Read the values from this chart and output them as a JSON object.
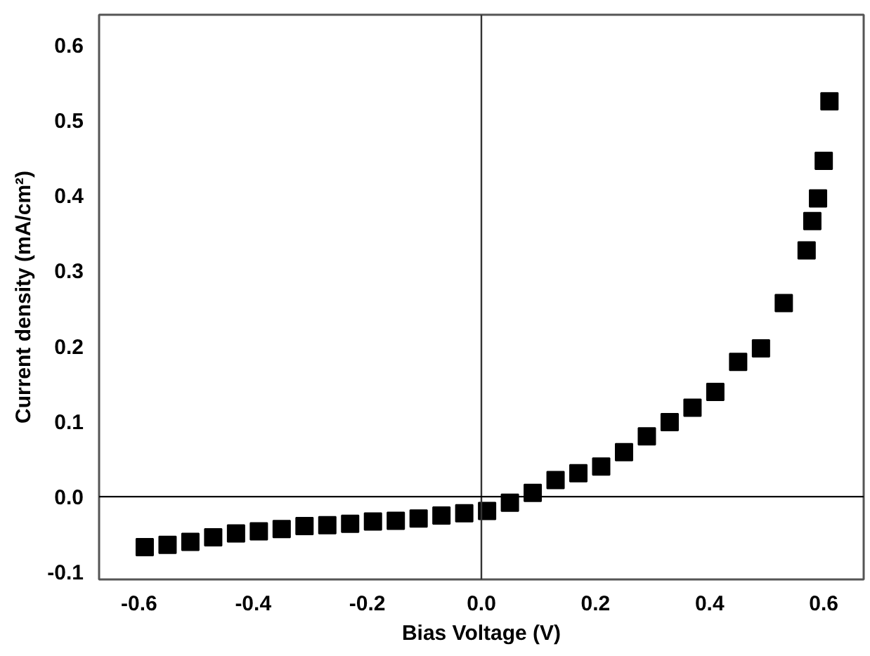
{
  "chart_data": {
    "type": "scatter",
    "xlabel": "Bias Voltage (V)",
    "ylabel": "Current density (mA/cm²)",
    "x": [
      -0.59,
      -0.55,
      -0.51,
      -0.47,
      -0.43,
      -0.39,
      -0.35,
      -0.31,
      -0.27,
      -0.23,
      -0.19,
      -0.15,
      -0.11,
      -0.07,
      -0.03,
      0.01,
      0.05,
      0.09,
      0.13,
      0.17,
      0.21,
      0.25,
      0.29,
      0.33,
      0.37,
      0.41,
      0.45,
      0.49,
      0.53,
      0.57,
      0.58,
      0.59,
      0.6,
      0.61
    ],
    "series": [
      {
        "color": "#000000",
        "values": [
          -0.067,
          -0.064,
          -0.06,
          -0.054,
          -0.049,
          -0.046,
          -0.043,
          -0.039,
          -0.038,
          -0.036,
          -0.033,
          -0.032,
          -0.029,
          -0.025,
          -0.022,
          -0.019,
          -0.008,
          0.005,
          0.022,
          0.031,
          0.04,
          0.059,
          0.08,
          0.099,
          0.118,
          0.139,
          0.179,
          0.197,
          0.257,
          0.327,
          0.366,
          0.396,
          0.446,
          0.525
        ]
      }
    ],
    "marker": "square",
    "grid": false,
    "xlim": [
      -0.67,
      0.67
    ],
    "ylim": [
      -0.11,
      0.64
    ],
    "xticks": [
      -0.6,
      -0.4,
      -0.2,
      {
        "value": 0,
        "label": "0.0"
      },
      0.2,
      0.4,
      0.6
    ],
    "yticks": [
      -0.1,
      {
        "value": 0,
        "label": "0.0"
      },
      0.1,
      0.2,
      0.3,
      0.4,
      0.5,
      0.6
    ],
    "ref_lines": [
      {
        "axis": "x",
        "value": 0,
        "color": "#333333"
      },
      {
        "axis": "y",
        "value": 0,
        "color": "#000000"
      }
    ]
  }
}
